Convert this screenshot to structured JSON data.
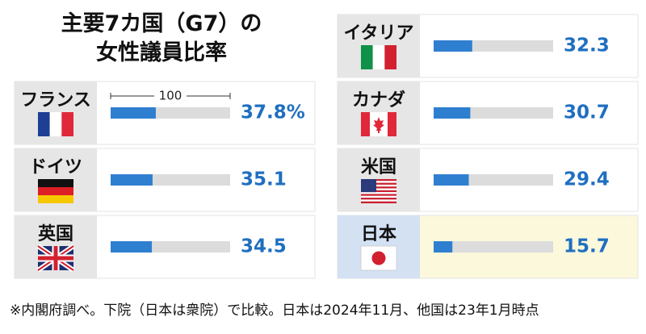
{
  "chart_data": {
    "type": "bar",
    "title": "主要7カ国（G7）の\n女性議員比率",
    "categories": [
      "フランス",
      "ドイツ",
      "英国",
      "イタリア",
      "カナダ",
      "米国",
      "日本"
    ],
    "values": [
      37.8,
      35.1,
      34.5,
      32.3,
      30.7,
      29.4,
      15.7
    ],
    "value_labels": [
      "37.8%",
      "35.1",
      "34.5",
      "32.3",
      "30.7",
      "29.4",
      "15.7"
    ],
    "xlim": [
      0,
      100
    ],
    "xticks": [
      100
    ],
    "color": "#2f7fd0",
    "track_color": "#dcdcdc",
    "value_color": "#1f6fc0",
    "label_fills": [
      "#e6e6e6",
      "#e6e6e6",
      "#e6e6e6",
      "#e6e6e6",
      "#e6e6e6",
      "#e6e6e6",
      "#d3e1f3"
    ],
    "panel_fills": [
      "#ffffff",
      "#ffffff",
      "#ffffff",
      "#ffffff",
      "#ffffff",
      "#ffffff",
      "#fbf8dc"
    ],
    "note": "※内閣府調べ。下院（日本は衆院）で比較。日本は2024年11月、他国は23年1月時点"
  }
}
